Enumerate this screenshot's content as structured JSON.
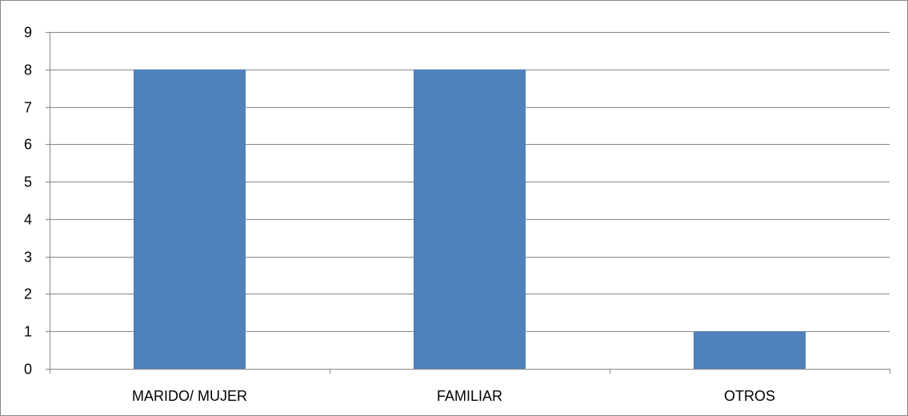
{
  "chart_data": {
    "type": "bar",
    "title": "",
    "xlabel": "",
    "ylabel": "",
    "categories": [
      "MARIDO/ MUJER",
      "FAMILIAR",
      "OTROS"
    ],
    "values": [
      8,
      8,
      1
    ],
    "ylim": [
      0,
      9
    ],
    "yticks": [
      "0",
      "1",
      "2",
      "3",
      "4",
      "5",
      "6",
      "7",
      "8",
      "9"
    ],
    "grid": true,
    "legend": "none",
    "bar_color": "#4f81bd",
    "gridline_color": "#868686",
    "frame_color": "#868686"
  }
}
